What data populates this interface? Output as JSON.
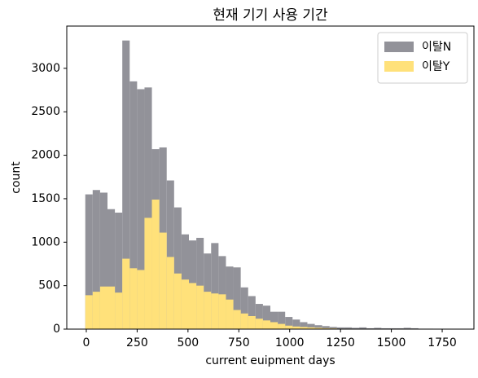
{
  "chart_data": {
    "type": "histogram",
    "title": "현재 기기 사용 기간",
    "x_label": "current euipment days",
    "y_label": "count",
    "bins": [
      -5,
      31.4,
      67.8,
      104.2,
      140.6,
      177,
      213.4,
      249.8,
      286.2,
      322.6,
      359,
      395.4,
      431.8,
      468.2,
      504.6,
      541,
      577.4,
      613.8,
      650.2,
      686.6,
      723,
      759.4,
      795.8,
      832.2,
      868.6,
      905,
      941.4,
      977.8,
      1014.2,
      1050.6,
      1087,
      1123.4,
      1159.8,
      1196.2,
      1232.6,
      1269,
      1305.4,
      1341.8,
      1378.2,
      1414.6,
      1451,
      1487.4,
      1523.8,
      1560.2,
      1596.6,
      1633,
      1669.4,
      1705.8,
      1742.2,
      1778.6,
      1815
    ],
    "series": [
      {
        "name": "이탈N",
        "color": "#929299",
        "values": [
          1550,
          1600,
          1570,
          1380,
          1340,
          3320,
          2850,
          2760,
          2780,
          2070,
          2090,
          1710,
          1400,
          1090,
          1020,
          1050,
          870,
          990,
          840,
          720,
          710,
          480,
          380,
          290,
          270,
          200,
          200,
          140,
          110,
          80,
          60,
          45,
          35,
          25,
          20,
          20,
          15,
          20,
          10,
          15,
          10,
          10,
          10,
          15,
          10,
          5,
          5,
          3,
          2,
          2
        ]
      },
      {
        "name": "이탈Y",
        "color": "#ffe17a",
        "values": [
          390,
          430,
          490,
          490,
          420,
          810,
          700,
          680,
          1280,
          1490,
          1110,
          830,
          640,
          570,
          530,
          500,
          430,
          410,
          400,
          340,
          220,
          180,
          150,
          120,
          100,
          80,
          60,
          40,
          30,
          25,
          20,
          15,
          10,
          8,
          5,
          5,
          3,
          3,
          2,
          2,
          2,
          1,
          1,
          1,
          1,
          1,
          1,
          1,
          0,
          0
        ]
      }
    ],
    "xlim": [
      -96,
      1906
    ],
    "ylim": [
      0,
      3486
    ],
    "xticks": [
      0,
      250,
      500,
      750,
      1000,
      1250,
      1500,
      1750
    ],
    "yticks": [
      0,
      500,
      1000,
      1500,
      2000,
      2500,
      3000
    ],
    "legend": "upper right"
  }
}
